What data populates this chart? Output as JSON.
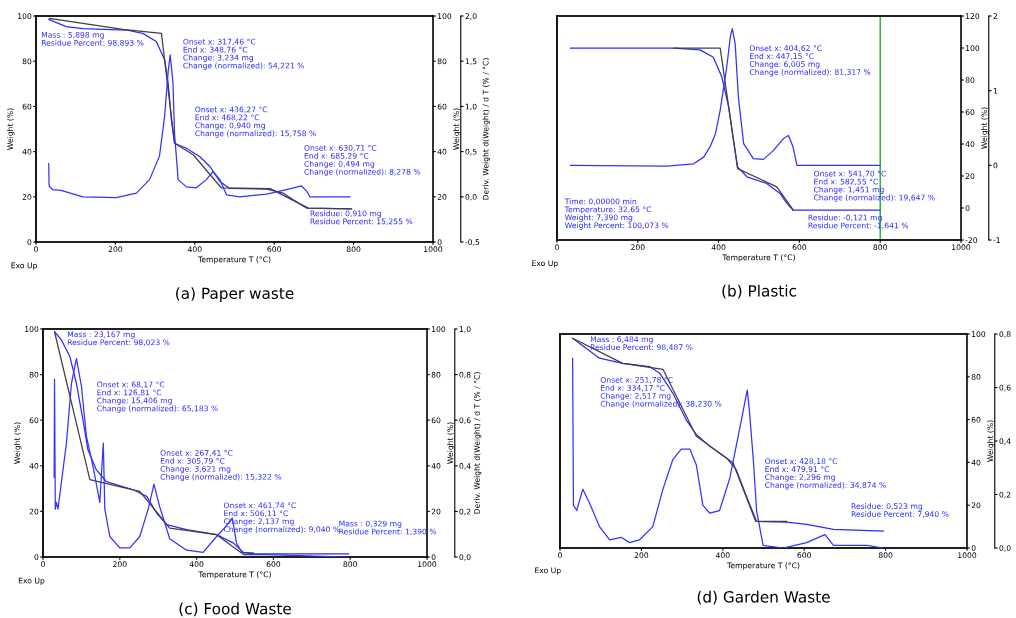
{
  "chart_data": [
    {
      "type": "line",
      "title": "(a) Paper waste",
      "xlabel": "Temperature T (°C)",
      "ylabel": "Weight (%)",
      "y2label": "Weight (%)",
      "y3label": "Deriv. Weight d(Weight) / d T (% / °C)",
      "xlim": [
        0,
        1000
      ],
      "xticks": [
        0,
        200,
        400,
        600,
        800,
        1000
      ],
      "ylim": [
        0,
        100
      ],
      "yticks": [
        0,
        20,
        40,
        60,
        80,
        100
      ],
      "y2lim": [
        0,
        100
      ],
      "y2ticks": [
        0,
        20,
        40,
        60,
        80,
        100
      ],
      "y3lim": [
        -0.5,
        2.0
      ],
      "y3ticks": [
        {
          "value": -0.5,
          "label": "-0,5"
        },
        {
          "value": 0.0,
          "label": "0,0"
        },
        {
          "value": 0.5,
          "label": "0,5"
        },
        {
          "value": 1.0,
          "label": "1,0"
        },
        {
          "value": 1.5,
          "label": "1,5"
        },
        {
          "value": 2.0,
          "label": "2,0"
        }
      ],
      "series": [
        {
          "type": "line",
          "color": "#2b2bff",
          "x": [
            32,
            76,
            118,
            227,
            269,
            303,
            324,
            333,
            341,
            349,
            379,
            412,
            438,
            463,
            488,
            581,
            623,
            648,
            682,
            795
          ],
          "values": [
            98.5,
            95.3,
            94.4,
            93.8,
            92.3,
            88.7,
            80.6,
            70.2,
            54,
            43.7,
            41.5,
            37.8,
            33.4,
            26.8,
            23.7,
            23.4,
            21.6,
            18.7,
            15,
            14.7
          ]
        },
        {
          "type": "line",
          "color": "#404040",
          "x": [
            34,
            219,
            316,
            349,
            396,
            467,
            590,
            686,
            795
          ],
          "values": [
            99,
            94.1,
            92.3,
            43.7,
            38.6,
            23.9,
            23.6,
            15,
            14.7
          ]
        },
        {
          "type": "line",
          "color": "#3333ff",
          "axis": "y3",
          "x": [
            32,
            33,
            42,
            63,
            118,
            202,
            253,
            286,
            311,
            324,
            333,
            338,
            345,
            349,
            358,
            379,
            404,
            429,
            446,
            463,
            480,
            513,
            581,
            631,
            669,
            682,
            690,
            791
          ],
          "values": [
            0.37,
            0.12,
            0.08,
            0.07,
            0.0,
            -0.01,
            0.04,
            0.19,
            0.45,
            0.89,
            1.39,
            1.57,
            1.26,
            0.7,
            0.19,
            0.11,
            0.1,
            0.19,
            0.28,
            0.19,
            0.02,
            0.0,
            0.03,
            0.08,
            0.12,
            0.06,
            0.0,
            0.0
          ]
        }
      ],
      "annotations": [
        "Mass : 5,898 mg\nResidue Percent: 98,893 %",
        "Onset x: 317,46 °C\nEnd x: 348,76 °C\nChange: 3,234 mg\nChange (normalized): 54,221 %",
        "Onset x: 436,27 °C\nEnd x: 468,22 °C\nChange: 0,940 mg\nChange (normalized): 15,758 %",
        "Onset x: 630,71 °C\nEnd x: 685,29 °C\nChange: 0,494 mg\nChange (normalized): 8,278 %",
        "Residue: 0,910 mg\nResidue Percent: 15,255 %",
        "Exo Up"
      ]
    },
    {
      "type": "line",
      "title": "(b) Plastic",
      "xlabel": "Temperature T (°C)",
      "y2label": "Weight (%)",
      "xlim": [
        0,
        1000
      ],
      "xticks": [
        0,
        200,
        400,
        600,
        800,
        1000
      ],
      "y2lim": [
        -20,
        120
      ],
      "y2ticks": [
        -20,
        0,
        20,
        40,
        60,
        80,
        100,
        120
      ],
      "y3lim": [
        -1,
        2
      ],
      "y3ticks": [
        -1,
        0,
        1,
        2
      ],
      "ref_lines": [
        {
          "axis": "x",
          "value": 800,
          "color": "#22aa22"
        }
      ],
      "series": [
        {
          "type": "line",
          "color": "#2b2bff",
          "axis": "y2",
          "x": [
            33,
            289,
            354,
            387,
            408,
            425,
            437,
            447,
            470,
            519,
            552,
            569,
            584,
            800
          ],
          "values": [
            99.9,
            99.9,
            98.8,
            94.2,
            81.8,
            63,
            42.3,
            25.7,
            19.5,
            15.3,
            9.1,
            2.9,
            -1.3,
            -1.3
          ]
        },
        {
          "color": "#404040",
          "axis": "y2",
          "x": [
            289,
            404,
            447,
            544,
            585
          ],
          "values": [
            99.9,
            99.9,
            24.6,
            13.2,
            -1.3
          ]
        },
        {
          "type": "line",
          "color": "#3333ff",
          "axis": "y3",
          "x": [
            33,
            272,
            338,
            363,
            379,
            392,
            404,
            420,
            429,
            434,
            441,
            449,
            462,
            486,
            511,
            536,
            561,
            573,
            584,
            594,
            800
          ],
          "values": [
            0,
            -0.01,
            0.02,
            0.11,
            0.25,
            0.42,
            0.74,
            1.31,
            1.72,
            1.83,
            1.63,
            0.91,
            0.29,
            0.09,
            0.08,
            0.2,
            0.36,
            0.4,
            0.25,
            0.0,
            0.0
          ]
        }
      ],
      "annotations": [
        "Onset x: 404,62 °C\nEnd x: 447,15 °C\nChange: 6,005 mg\nChange (normalized): 81,317 %",
        "Onset x: 541,70 °C\nEnd x: 582,55 °C\nChange: 1,451 mg\nChange (normalized): 19,647 %",
        "Residue: -0,121 mg\nResidue Percent: -1,641 %",
        "Time: 0,00000 min\nTemperature: 32,65 °C\nWeight: 7,390 mg\nWeight Percent: 100,073 %",
        "Exo Up"
      ]
    },
    {
      "type": "line",
      "title": "(c) Food Waste",
      "xlabel": "Temperature T (°C)",
      "ylabel": "Weight (%)",
      "y2label": "Weight (%)",
      "y3label": "Deriv. Weight d(Weight) / d T (% / °C)",
      "xlim": [
        0,
        1000
      ],
      "xticks": [
        0,
        200,
        400,
        600,
        800,
        1000
      ],
      "ylim": [
        0,
        100
      ],
      "yticks": [
        0,
        20,
        40,
        60,
        80,
        100
      ],
      "y2lim": [
        0,
        100
      ],
      "y2ticks": [
        0,
        20,
        40,
        60,
        80,
        100
      ],
      "y3lim": [
        0.0,
        1.0
      ],
      "y3ticks": [
        {
          "value": 0.0,
          "label": "0,0"
        },
        {
          "value": 0.2,
          "label": "0,2"
        },
        {
          "value": 0.4,
          "label": "0,4"
        },
        {
          "value": 0.6,
          "label": "0,6"
        },
        {
          "value": 0.8,
          "label": "0,8"
        },
        {
          "value": 1.0,
          "label": "1,0"
        }
      ],
      "series": [
        {
          "type": "line",
          "color": "#2b2bff",
          "x": [
            30,
            48,
            70,
            87,
            104,
            117,
            139,
            165,
            235,
            270,
            296,
            322,
            374,
            452,
            496,
            522,
            548,
            796
          ],
          "values": [
            98.8,
            95.2,
            87.9,
            76.2,
            60.1,
            47,
            38.2,
            33.1,
            29.5,
            26.6,
            19.3,
            14.2,
            12,
            9.8,
            6.1,
            2,
            1.4,
            1.4
          ]
        },
        {
          "type": "line",
          "color": "#404040",
          "x": [
            30,
            122,
            252,
            330,
            452,
            517,
            548
          ],
          "values": [
            98.8,
            33.9,
            28.8,
            12.7,
            9.8,
            1.8,
            1.8
          ]
        },
        {
          "type": "line",
          "color": "#3333ff",
          "axis": "y3",
          "x": [
            29,
            30,
            32,
            35,
            39,
            61,
            74,
            87,
            100,
            113,
            130,
            148,
            157,
            161,
            174,
            200,
            226,
            252,
            274,
            289,
            304,
            330,
            374,
            417,
            452,
            474,
            493,
            504,
            522,
            583,
            796
          ],
          "values": [
            0.35,
            0.78,
            0.21,
            0.24,
            0.21,
            0.5,
            0.76,
            0.87,
            0.75,
            0.53,
            0.4,
            0.24,
            0.5,
            0.21,
            0.09,
            0.04,
            0.04,
            0.09,
            0.21,
            0.32,
            0.22,
            0.08,
            0.03,
            0.02,
            0.09,
            0.13,
            0.17,
            0.06,
            0.01,
            0.01,
            0.0
          ]
        }
      ],
      "annotations": [
        "Mass : 23,167 mg\nResidue Percent: 98,023 %",
        "Onset x: 68,17 °C\nEnd x: 126,81 °C\nChange: 15,406 mg\nChange (normalized): 65,183 %",
        "Onset x: 267,41 °C\nEnd x: 305,79 °C\nChange: 3,621 mg\nChange (normalized): 15,322 %",
        "Onset x: 461,74 °C\nEnd x: 506,11 °C\nChange: 2,137 mg\nChange (normalized): 9,040 %",
        "Mass : 0,329 mg\nResidue Percent: 1,390 %",
        "Exo Up"
      ]
    },
    {
      "type": "line",
      "title": "(d) Garden Waste",
      "xlabel": "Temperature T (°C)",
      "y2label": "Weight (%)",
      "xlim": [
        0,
        1000
      ],
      "xticks": [
        0,
        200,
        400,
        600,
        800,
        1000
      ],
      "y2lim": [
        0,
        100
      ],
      "y2ticks": [
        0,
        20,
        40,
        60,
        80,
        100
      ],
      "y3lim": [
        0.0,
        0.8
      ],
      "y3ticks": [
        {
          "value": 0.0,
          "label": "0,0"
        },
        {
          "value": 0.2,
          "label": "0,2"
        },
        {
          "value": 0.4,
          "label": "0,4"
        },
        {
          "value": 0.6,
          "label": "0,6"
        },
        {
          "value": 0.8,
          "label": "0,8"
        }
      ],
      "series": [
        {
          "type": "line",
          "color": "#2b2bff",
          "axis": "y2",
          "x": [
            31,
            64,
            97,
            154,
            220,
            245,
            277,
            310,
            335,
            368,
            409,
            433,
            458,
            483,
            557,
            606,
            672,
            795
          ],
          "values": [
            98,
            93.3,
            88.7,
            86.3,
            84.8,
            81.7,
            72.4,
            59.9,
            53,
            47.5,
            42.1,
            36.6,
            24.2,
            12.4,
            12.1,
            11,
            8.7,
            7.9
          ]
        },
        {
          "type": "line",
          "color": "#404040",
          "axis": "y2",
          "x": [
            31,
            154,
            253,
            335,
            425,
            481,
            557
          ],
          "values": [
            98,
            86.3,
            83.5,
            52.2,
            39.8,
            12.4,
            12.4
          ]
        },
        {
          "type": "line",
          "color": "#3333ff",
          "axis": "y3",
          "x": [
            31,
            33,
            41,
            56,
            72,
            97,
            122,
            150,
            171,
            195,
            228,
            253,
            277,
            298,
            319,
            335,
            351,
            368,
            392,
            417,
            442,
            460,
            465,
            475,
            483,
            499,
            548,
            606,
            651,
            672,
            754,
            795
          ],
          "values": [
            0.71,
            0.16,
            0.14,
            0.22,
            0.17,
            0.08,
            0.03,
            0.04,
            0.02,
            0.03,
            0.08,
            0.22,
            0.33,
            0.37,
            0.37,
            0.31,
            0.16,
            0.13,
            0.14,
            0.26,
            0.45,
            0.59,
            0.52,
            0.33,
            0.14,
            0.01,
            0.0,
            0.02,
            0.05,
            0.01,
            0.01,
            0.0
          ]
        }
      ],
      "annotations": [
        "Mass : 6,484 mg\nResidue Percent: 98,487 %",
        "Onset x: 251,78 °C\nEnd x: 334,17 °C\nChange: 2,517 mg\nChange (normalized): 38,230 %",
        "Onset x: 428,18 °C\nEnd x: 479,91 °C\nChange: 2,296 mg\nChange (normalized): 34,874 %",
        "Residue: 0,523 mg\nResidue Percent: 7,940 %",
        "Exo Up"
      ]
    }
  ]
}
